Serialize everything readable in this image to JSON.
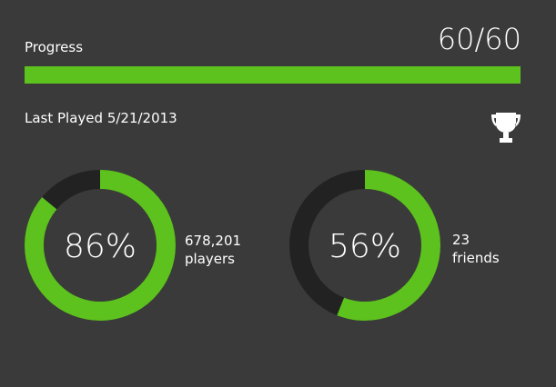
{
  "progress": {
    "label": "Progress",
    "text": "60/60",
    "current": 60,
    "total": 60
  },
  "last_played": "Last Played 5/21/2013",
  "stats": [
    {
      "value": 86,
      "label": "86%",
      "caption": "678,201 players"
    },
    {
      "value": 56,
      "label": "56%",
      "caption": "23 friends"
    }
  ]
}
